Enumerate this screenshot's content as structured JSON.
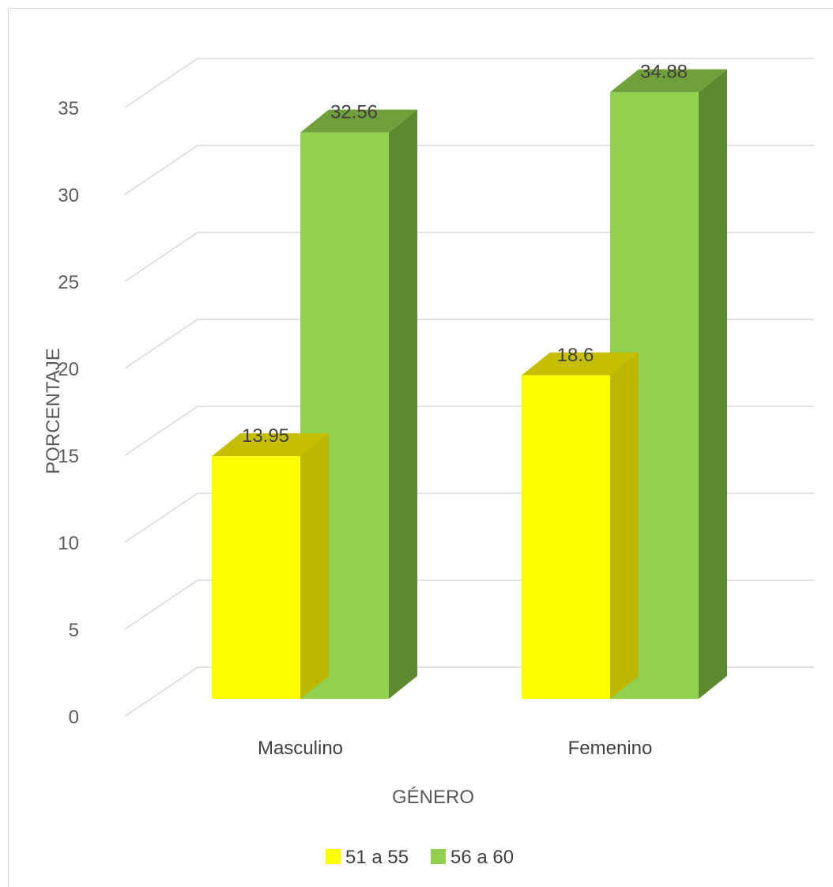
{
  "chart_data": {
    "type": "bar",
    "subtype": "3d-clustered-column",
    "categories": [
      "Masculino",
      "Femenino"
    ],
    "series": [
      {
        "name": "51 a 55",
        "values": [
          13.95,
          18.6
        ],
        "color": "#ffff00",
        "top_color": "#c5bf00",
        "side_color": "#bdb700"
      },
      {
        "name": "56 a 60",
        "values": [
          32.56,
          34.88
        ],
        "color": "#92d050",
        "top_color": "#70a03a",
        "side_color": "#5e8a2f"
      }
    ],
    "data_labels": [
      [
        "13.95",
        "18.6"
      ],
      [
        "32.56",
        "34.88"
      ]
    ],
    "title": "",
    "xlabel": "GÉNERO",
    "ylabel": "PORCENTAJE",
    "ylim": [
      0,
      35
    ],
    "yticks": [
      0,
      5,
      10,
      15,
      20,
      25,
      30,
      35
    ],
    "ytick_labels": [
      "0",
      "5",
      "10",
      "15",
      "20",
      "25",
      "30",
      "35"
    ],
    "grid": true,
    "legend_position": "bottom"
  }
}
